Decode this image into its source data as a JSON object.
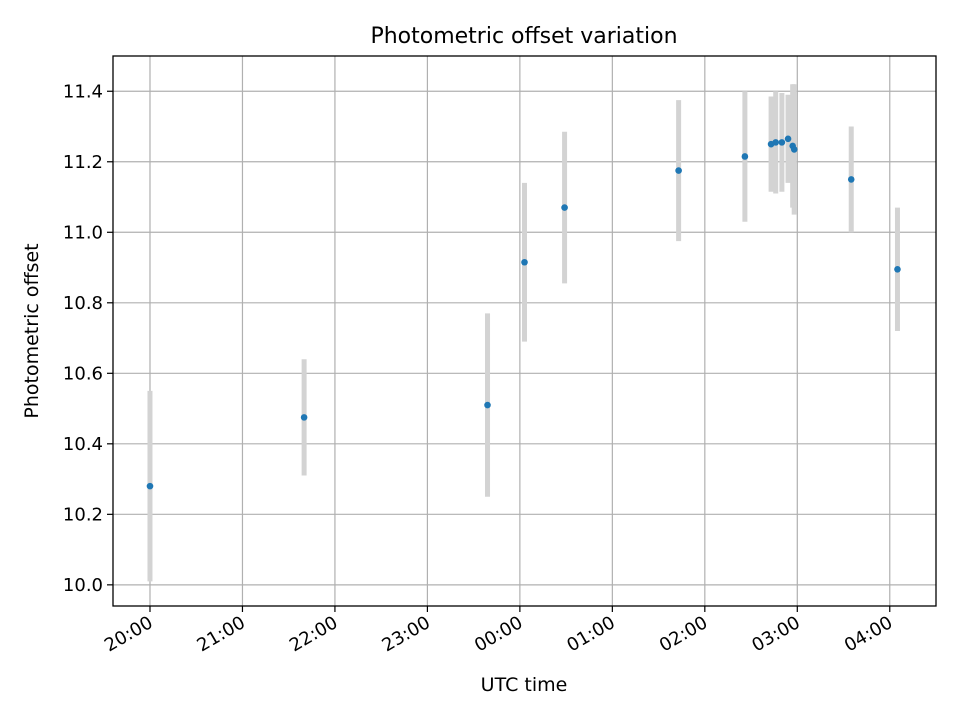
{
  "chart_data": {
    "type": "scatter",
    "title": "Photometric offset variation",
    "xlabel": "UTC time",
    "ylabel": "Photometric offset",
    "x_is_time": true,
    "xlim": [
      "19:36",
      "04:30"
    ],
    "ylim": [
      9.94,
      11.5
    ],
    "xticks": [
      "20:00",
      "21:00",
      "22:00",
      "23:00",
      "00:00",
      "01:00",
      "02:00",
      "03:00",
      "04:00"
    ],
    "yticks": [
      "10.0",
      "10.2",
      "10.4",
      "10.6",
      "10.8",
      "11.0",
      "11.2",
      "11.4"
    ],
    "grid": true,
    "errorbar_color": "#d3d3d3",
    "marker_color": "#1f77b4",
    "points": [
      {
        "t": "20:00",
        "y": 10.28,
        "err": 0.27
      },
      {
        "t": "21:40",
        "y": 10.475,
        "err": 0.165
      },
      {
        "t": "23:39",
        "y": 10.51,
        "err": 0.26
      },
      {
        "t": "00:03",
        "y": 10.915,
        "err": 0.225
      },
      {
        "t": "00:29",
        "y": 11.07,
        "err": 0.215
      },
      {
        "t": "01:43",
        "y": 11.175,
        "err": 0.2
      },
      {
        "t": "02:26",
        "y": 11.215,
        "err": 0.185
      },
      {
        "t": "02:43",
        "y": 11.25,
        "err": 0.135
      },
      {
        "t": "02:46",
        "y": 11.255,
        "err": 0.145
      },
      {
        "t": "02:50",
        "y": 11.255,
        "err": 0.14
      },
      {
        "t": "02:54",
        "y": 11.265,
        "err": 0.125
      },
      {
        "t": "02:57",
        "y": 11.245,
        "err": 0.175
      },
      {
        "t": "02:58",
        "y": 11.235,
        "err": 0.185
      },
      {
        "t": "03:35",
        "y": 11.15,
        "err": 0.15
      },
      {
        "t": "04:05",
        "y": 10.895,
        "err": 0.175
      }
    ]
  }
}
